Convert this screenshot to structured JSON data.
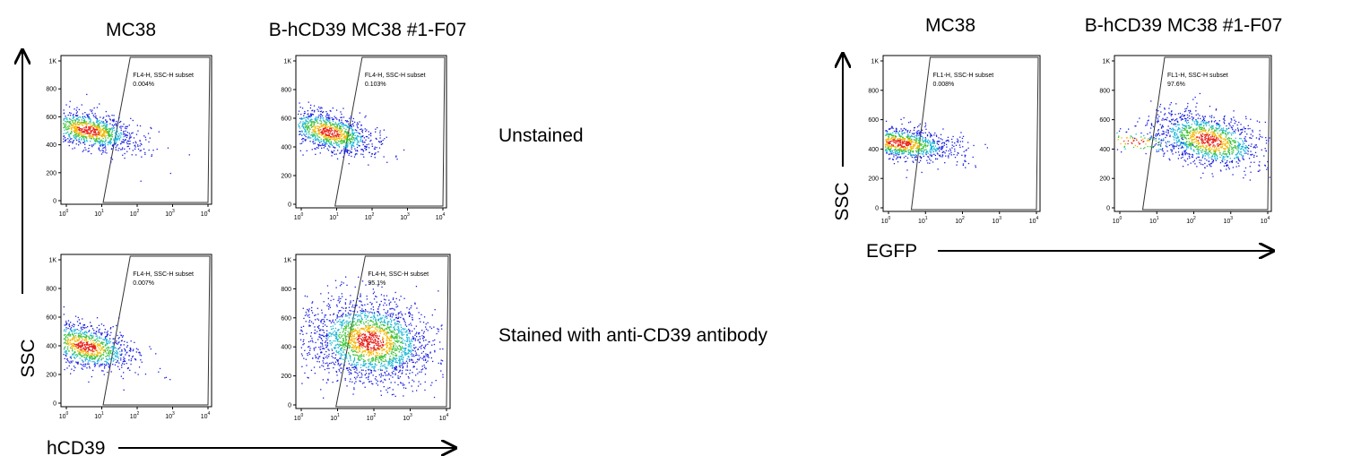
{
  "left": {
    "columns": [
      "MC38",
      "B-hCD39 MC38 #1-F07"
    ],
    "rows": [
      "Unstained",
      "Stained with anti-CD39 antibody"
    ],
    "y_label": "SSC",
    "x_label": "hCD39",
    "plots": [
      {
        "gate": "FL4-H, SSC-H subset",
        "percent": "0.004%"
      },
      {
        "gate": "FL4-H, SSC-H subset",
        "percent": "0.103%"
      },
      {
        "gate": "FL4-H, SSC-H subset",
        "percent": "0.007%"
      },
      {
        "gate": "FL4-H, SSC-H subset",
        "percent": "95.1%"
      }
    ]
  },
  "right": {
    "columns": [
      "MC38",
      "B-hCD39 MC38 #1-F07"
    ],
    "y_label": "SSC",
    "x_label": "EGFP",
    "plots": [
      {
        "gate": "FL1-H, SSC-H subset",
        "percent": "0.008%"
      },
      {
        "gate": "FL1-H, SSC-H subset",
        "percent": "97.6%"
      }
    ]
  },
  "yticks": [
    "0",
    "200",
    "400",
    "600",
    "800",
    "1K"
  ],
  "xticks": [
    {
      "base": "10",
      "exp": "0"
    },
    {
      "base": "10",
      "exp": "1"
    },
    {
      "base": "10",
      "exp": "2"
    },
    {
      "base": "10",
      "exp": "3"
    },
    {
      "base": "10",
      "exp": "4"
    }
  ]
}
